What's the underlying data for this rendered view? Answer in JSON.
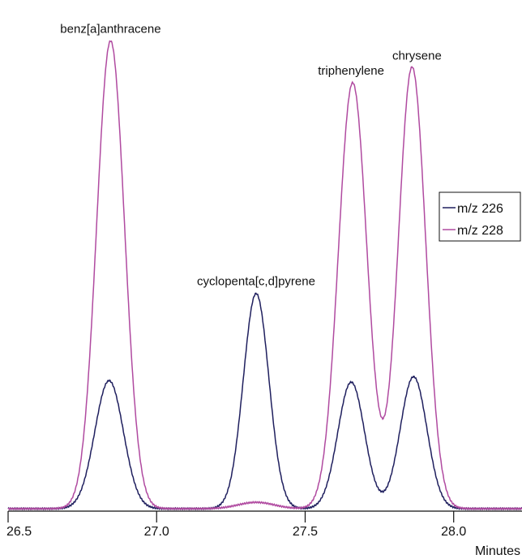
{
  "chart_data": {
    "type": "line",
    "xlabel": "Minutes",
    "ylabel": "",
    "xlim": [
      26.5,
      28.23
    ],
    "ylim": [
      0,
      100
    ],
    "xticks": [
      {
        "value": 26.5,
        "label": "26.5"
      },
      {
        "value": 27.0,
        "label": "27.0"
      },
      {
        "value": 27.5,
        "label": "27.5"
      },
      {
        "value": 28.0,
        "label": "28.0"
      }
    ],
    "legend": {
      "position": "right"
    },
    "series": [
      {
        "name": "m/z 226",
        "color": "#1f1f5e",
        "peaks": [
          {
            "center": 26.84,
            "height": 26.0,
            "width": 0.048
          },
          {
            "center": 27.335,
            "height": 43.7,
            "width": 0.043
          },
          {
            "center": 27.655,
            "height": 25.7,
            "width": 0.045
          },
          {
            "center": 27.865,
            "height": 26.8,
            "width": 0.045
          }
        ]
      },
      {
        "name": "m/z 228",
        "color": "#b04aa0",
        "peaks": [
          {
            "center": 26.845,
            "height": 95.0,
            "width": 0.047
          },
          {
            "center": 27.335,
            "height": 1.3,
            "width": 0.06
          },
          {
            "center": 27.66,
            "height": 86.5,
            "width": 0.048
          },
          {
            "center": 27.86,
            "height": 89.7,
            "width": 0.046
          }
        ]
      }
    ],
    "annotations": [
      {
        "text": "benz[a]anthracene",
        "x": 26.845,
        "y": 95.0
      },
      {
        "text": "cyclopenta[c,d]pyrene",
        "x": 27.335,
        "y": 43.7
      },
      {
        "text": "triphenylene",
        "x": 27.66,
        "y": 86.5
      },
      {
        "text": "chrysene",
        "x": 27.86,
        "y": 89.7
      }
    ]
  }
}
